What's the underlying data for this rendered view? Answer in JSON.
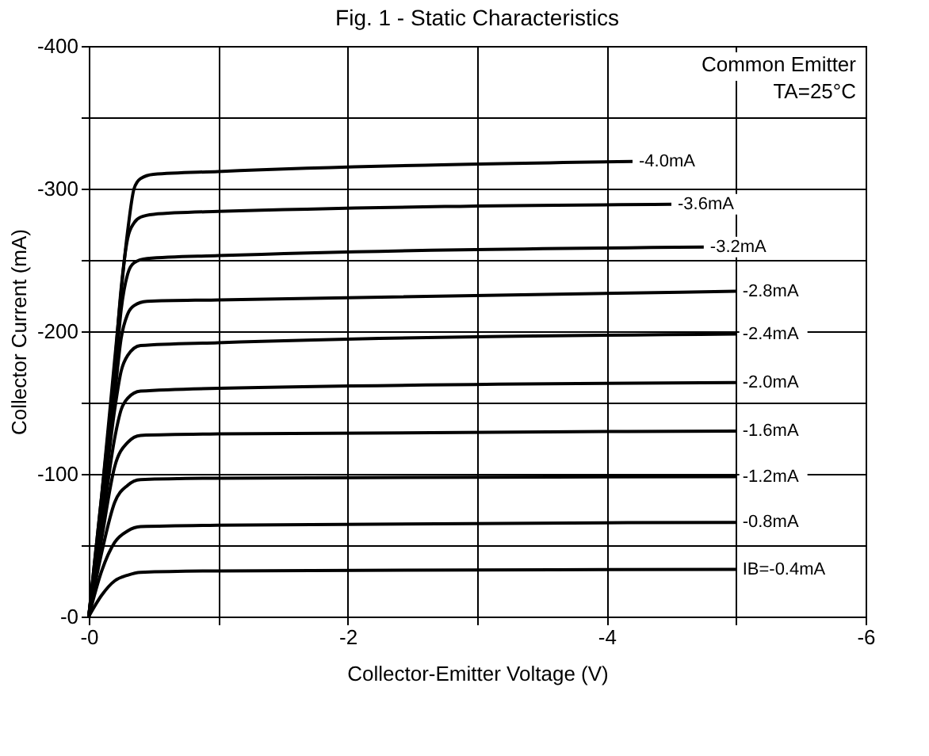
{
  "chart_data": {
    "type": "line",
    "title": "Fig. 1 - Static Characteristics",
    "xlabel": "Collector-Emitter Voltage (V)",
    "ylabel": "Collector Current (mA)",
    "annotations": [
      "Common Emitter",
      "TA=25°C"
    ],
    "xlim": [
      0,
      -6
    ],
    "ylim": [
      0,
      -400
    ],
    "xticks": [
      {
        "value": 0,
        "label": "-0"
      },
      {
        "value": -1,
        "label": null
      },
      -2,
      {
        "value": -3,
        "label": null
      },
      -4,
      {
        "value": -5,
        "label": null
      },
      -6
    ],
    "yticks": [
      {
        "value": 0,
        "label": "-0"
      },
      {
        "value": -50,
        "label": null
      },
      -100,
      {
        "value": -150,
        "label": null
      },
      -200,
      {
        "value": -250,
        "label": null
      },
      -300,
      {
        "value": -350,
        "label": null
      },
      -400
    ],
    "grid": true,
    "line_style": "solid",
    "series": [
      {
        "name": "-4.0mA",
        "color": "#000000",
        "x": [
          0,
          -0.1,
          -0.2,
          -0.3,
          -0.35,
          -0.4,
          -0.5,
          -1,
          -4.2
        ],
        "values": [
          0,
          -85,
          -180,
          -270,
          -300,
          -307,
          -310,
          -312,
          -319
        ]
      },
      {
        "name": "-3.6mA",
        "color": "#000000",
        "x": [
          0,
          -0.1,
          -0.2,
          -0.25,
          -0.3,
          -0.35,
          -0.4,
          -0.5,
          -1,
          -4.5
        ],
        "values": [
          0,
          -85,
          -175,
          -230,
          -265,
          -276,
          -280,
          -282,
          -284,
          -289
        ]
      },
      {
        "name": "-3.2mA",
        "color": "#000000",
        "x": [
          0,
          -0.1,
          -0.2,
          -0.25,
          -0.3,
          -0.35,
          -0.45,
          -1,
          -4.75
        ],
        "values": [
          0,
          -80,
          -165,
          -215,
          -240,
          -248,
          -251,
          -253,
          -259
        ]
      },
      {
        "name": "-2.8mA",
        "color": "#000000",
        "x": [
          0,
          -0.1,
          -0.2,
          -0.25,
          -0.3,
          -0.35,
          -0.45,
          -1,
          -5
        ],
        "values": [
          0,
          -75,
          -155,
          -195,
          -212,
          -218,
          -221,
          -222,
          -228
        ]
      },
      {
        "name": "-2.4mA",
        "color": "#000000",
        "x": [
          0,
          -0.1,
          -0.2,
          -0.25,
          -0.3,
          -0.4,
          -1,
          -5
        ],
        "values": [
          0,
          -70,
          -145,
          -172,
          -183,
          -190,
          -192,
          -198
        ]
      },
      {
        "name": "-2.0mA",
        "color": "#000000",
        "x": [
          0,
          -0.1,
          -0.2,
          -0.25,
          -0.3,
          -0.4,
          -1,
          -5
        ],
        "values": [
          0,
          -62,
          -125,
          -145,
          -153,
          -158,
          -160,
          -164
        ]
      },
      {
        "name": "-1.6mA",
        "color": "#000000",
        "x": [
          0,
          -0.1,
          -0.2,
          -0.3,
          -0.4,
          -1,
          -5
        ],
        "values": [
          0,
          -55,
          -105,
          -122,
          -127,
          -128,
          -130
        ]
      },
      {
        "name": "-1.2mA",
        "color": "#000000",
        "x": [
          0,
          -0.1,
          -0.2,
          -0.3,
          -0.4,
          -1,
          -5
        ],
        "values": [
          0,
          -45,
          -80,
          -92,
          -96,
          -97,
          -98
        ]
      },
      {
        "name": "-0.8mA",
        "color": "#000000",
        "x": [
          0,
          -0.1,
          -0.2,
          -0.3,
          -0.4,
          -1,
          -5
        ],
        "values": [
          0,
          -32,
          -52,
          -60,
          -63,
          -64,
          -66
        ]
      },
      {
        "name": "IB=-0.4mA",
        "color": "#000000",
        "x": [
          0,
          -0.1,
          -0.2,
          -0.3,
          -0.4,
          -1,
          -5
        ],
        "values": [
          0,
          -15,
          -25,
          -29,
          -31,
          -32,
          -33
        ]
      }
    ]
  }
}
